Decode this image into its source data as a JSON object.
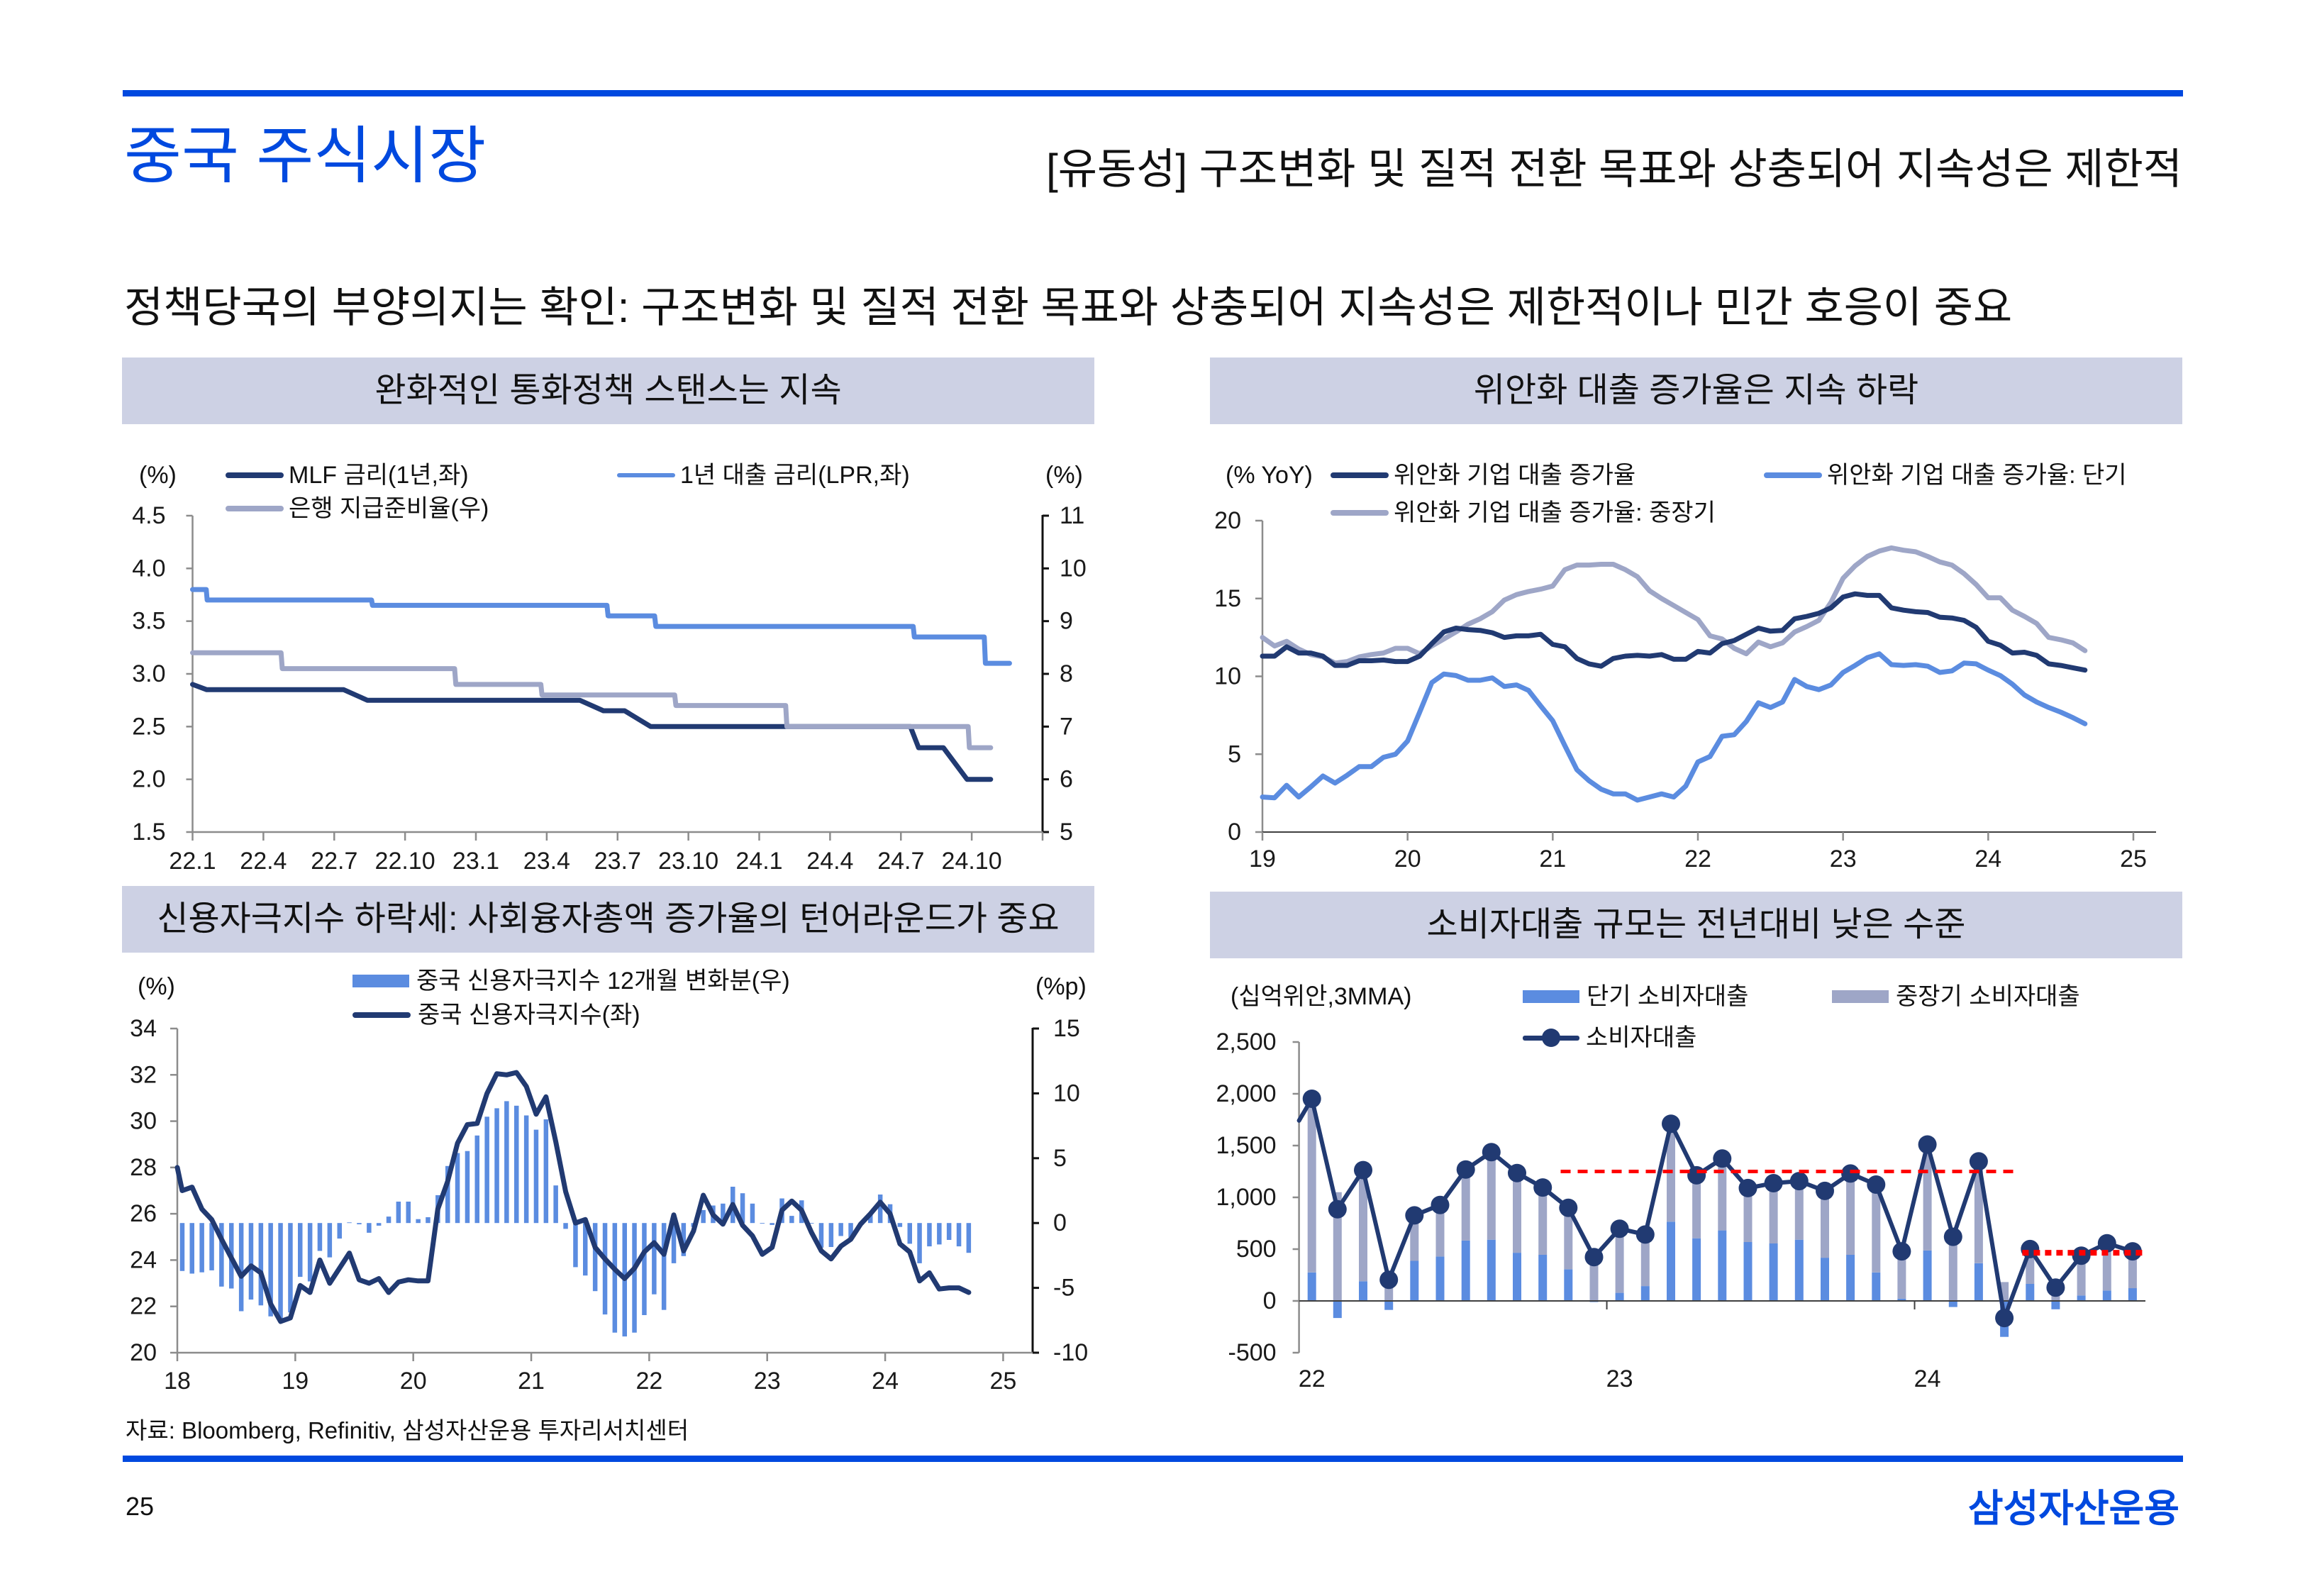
{
  "header": {
    "section_title": "중국 주식시장",
    "page_title": "[유동성] 구조변화 및 질적 전환 목표와 상충되어 지속성은 제한적"
  },
  "subtitle": "정책당국의 부양의지는 확인: 구조변화 및 질적 전환 목표와 상충되어 지속성은 제한적이나 민간 호응이 중요",
  "colors": {
    "brand_blue": "#0049DF",
    "panel_header_bg": "#CDD1E4",
    "navy": "#213A72",
    "light_blue": "#5B8CE0",
    "lavender_gray": "#9EA6C7",
    "reference_red": "#FF0000"
  },
  "chart_data": [
    {
      "type": "line",
      "title": "완화적인 통화정책 스탠스는 지속",
      "ylabel_left": "(%)",
      "ylabel_right": "(%)",
      "x_unit": "months since 2022.1",
      "xlim": [
        0,
        36
      ],
      "xtick_interval_months": 3,
      "xticks": [
        {
          "at": 0,
          "label": "22.1"
        },
        {
          "at": 3,
          "label": "22.4"
        },
        {
          "at": 6,
          "label": "22.7"
        },
        {
          "at": 9,
          "label": "22.10"
        },
        {
          "at": 12,
          "label": "23.1"
        },
        {
          "at": 15,
          "label": "23.4"
        },
        {
          "at": 18,
          "label": "23.7"
        },
        {
          "at": 21,
          "label": "23.10"
        },
        {
          "at": 24,
          "label": "24.1"
        },
        {
          "at": 27,
          "label": "24.4"
        },
        {
          "at": 30,
          "label": "24.7"
        },
        {
          "at": 33,
          "label": "24.10"
        }
      ],
      "ylim_left": [
        1.5,
        4.5
      ],
      "ylim_right": [
        5,
        11
      ],
      "yticks_left": [
        "1.5",
        "2.0",
        "2.5",
        "3.0",
        "3.5",
        "4.0",
        "4.5"
      ],
      "yticks_right": [
        "5",
        "6",
        "7",
        "8",
        "9",
        "10",
        "11"
      ],
      "grid": false,
      "legend": "top",
      "series": [
        {
          "key": "mlf",
          "name": "MLF 금리(1년,좌)",
          "axis": "left",
          "color": "#213A72",
          "points": [
            [
              0,
              2.9
            ],
            [
              0.6,
              2.85
            ],
            [
              6.4,
              2.85
            ],
            [
              7.4,
              2.75
            ],
            [
              16.4,
              2.75
            ],
            [
              17.4,
              2.65
            ],
            [
              18.3,
              2.65
            ],
            [
              19.4,
              2.5
            ],
            [
              30.4,
              2.5
            ],
            [
              30.75,
              2.3
            ],
            [
              31.8,
              2.3
            ],
            [
              32.8,
              2.0
            ],
            [
              33.8,
              2.0
            ]
          ]
        },
        {
          "key": "lpr",
          "name": "1년 대출 금리(LPR,좌)",
          "axis": "left",
          "color": "#5B8CE0",
          "points": [
            [
              0,
              3.8
            ],
            [
              0.58,
              3.8
            ],
            [
              0.62,
              3.7
            ],
            [
              7.58,
              3.7
            ],
            [
              7.62,
              3.65
            ],
            [
              17.55,
              3.65
            ],
            [
              17.6,
              3.55
            ],
            [
              19.57,
              3.55
            ],
            [
              19.62,
              3.45
            ],
            [
              30.52,
              3.45
            ],
            [
              30.57,
              3.35
            ],
            [
              33.53,
              3.35
            ],
            [
              33.58,
              3.1
            ],
            [
              34.6,
              3.1
            ]
          ]
        },
        {
          "key": "rrr",
          "name": "은행 지급준비율(우)",
          "axis": "right",
          "color": "#9EA6C7",
          "points": [
            [
              0,
              8.4
            ],
            [
              3.75,
              8.4
            ],
            [
              3.8,
              8.1
            ],
            [
              11.1,
              8.1
            ],
            [
              11.15,
              7.8
            ],
            [
              14.75,
              7.8
            ],
            [
              14.8,
              7.6
            ],
            [
              20.42,
              7.6
            ],
            [
              20.47,
              7.4
            ],
            [
              25.12,
              7.4
            ],
            [
              25.17,
              7.0
            ],
            [
              32.85,
              7.0
            ],
            [
              32.9,
              6.6
            ],
            [
              33.8,
              6.6
            ]
          ]
        }
      ]
    },
    {
      "type": "line",
      "title": "위안화 대출 증가율은 지속 하락",
      "ylabel": "(% YoY)",
      "x_start": "2019-01",
      "frequency": "monthly",
      "xlim": [
        19,
        25
      ],
      "ylim": [
        0,
        20
      ],
      "xticks": [
        "19",
        "20",
        "21",
        "22",
        "23",
        "24",
        "25"
      ],
      "yticks": [
        "0",
        "5",
        "10",
        "15",
        "20"
      ],
      "grid": false,
      "legend": "top",
      "series": [
        {
          "key": "mid-long",
          "name": "위안화 기업 대출 증가율: 중장기",
          "color": "#9EA6C7",
          "values": [
            12.5,
            11.95,
            12.25,
            11.75,
            11.4,
            11.25,
            10.85,
            10.95,
            11.25,
            11.4,
            11.5,
            11.8,
            11.8,
            11.45,
            11.95,
            12.4,
            12.85,
            13.35,
            13.7,
            14.15,
            14.9,
            15.25,
            15.45,
            15.6,
            15.8,
            16.85,
            17.15,
            17.15,
            17.2,
            17.2,
            16.85,
            16.4,
            15.5,
            15.0,
            14.55,
            14.1,
            13.65,
            12.6,
            12.4,
            11.8,
            11.45,
            12.2,
            11.9,
            12.15,
            12.85,
            13.2,
            13.6,
            14.75,
            16.3,
            17.1,
            17.7,
            18.05,
            18.25,
            18.1,
            18.0,
            17.7,
            17.35,
            17.15,
            16.6,
            15.9,
            15.05,
            15.05,
            14.25,
            13.85,
            13.4,
            12.5,
            12.35,
            12.15,
            11.65
          ]
        },
        {
          "key": "short",
          "name": "위안화 기업 대출 증가율: 단기",
          "color": "#5B8CE0",
          "values": [
            2.25,
            2.2,
            3.0,
            2.25,
            2.9,
            3.6,
            3.15,
            3.65,
            4.2,
            4.2,
            4.8,
            5.0,
            5.85,
            7.7,
            9.6,
            10.15,
            10.05,
            9.75,
            9.75,
            9.9,
            9.35,
            9.45,
            9.1,
            8.1,
            7.15,
            5.55,
            4.0,
            3.3,
            2.75,
            2.45,
            2.45,
            2.05,
            2.25,
            2.45,
            2.25,
            2.95,
            4.5,
            4.85,
            6.15,
            6.25,
            7.1,
            8.3,
            8.0,
            8.35,
            9.8,
            9.35,
            9.15,
            9.45,
            10.25,
            10.7,
            11.2,
            11.45,
            10.75,
            10.7,
            10.75,
            10.65,
            10.25,
            10.35,
            10.85,
            10.8,
            10.4,
            10.05,
            9.5,
            8.8,
            8.35,
            8.0,
            7.7,
            7.35,
            6.95
          ]
        },
        {
          "key": "total",
          "name": "위안화 기업 대출 증가율",
          "color": "#213A72",
          "values": [
            11.3,
            11.3,
            11.9,
            11.5,
            11.5,
            11.3,
            10.7,
            10.7,
            11.0,
            11.0,
            11.05,
            10.95,
            10.95,
            11.3,
            12.1,
            12.85,
            13.1,
            13.0,
            12.95,
            12.8,
            12.5,
            12.6,
            12.6,
            12.7,
            12.05,
            11.9,
            11.15,
            10.8,
            10.65,
            11.15,
            11.3,
            11.35,
            11.3,
            11.4,
            11.1,
            11.1,
            11.6,
            11.5,
            12.1,
            12.3,
            12.7,
            13.1,
            12.9,
            12.95,
            13.7,
            13.85,
            14.05,
            14.4,
            15.1,
            15.3,
            15.2,
            15.2,
            14.4,
            14.25,
            14.15,
            14.1,
            13.8,
            13.75,
            13.6,
            13.15,
            12.25,
            12.0,
            11.5,
            11.55,
            11.35,
            10.8,
            10.7,
            10.55,
            10.4
          ]
        }
      ]
    },
    {
      "type": "bar+line",
      "title": "신용자극지수 하락세: 사회융자총액 증가율의 턴어라운드가 중요",
      "ylabel_left": "(%)",
      "ylabel_right": "(%p)",
      "x_start": "2018-01",
      "frequency": "monthly",
      "xlim": [
        18,
        25.25
      ],
      "xticks": [
        "18",
        "19",
        "20",
        "21",
        "22",
        "23",
        "24",
        "25"
      ],
      "ylim_left": [
        20,
        34
      ],
      "ylim_right": [
        -10,
        15
      ],
      "yticks_left": [
        "20",
        "22",
        "24",
        "26",
        "28",
        "30",
        "32",
        "34"
      ],
      "yticks_right": [
        "-10",
        "-5",
        "0",
        "5",
        "10",
        "15"
      ],
      "grid": false,
      "legend": "top",
      "series": [
        {
          "key": "impulse-change",
          "name": "중국 신용자극지수 12개월 변화분(우)",
          "type": "bar",
          "axis": "right",
          "color": "#5B8CE0",
          "values": [
            -3.7,
            -3.9,
            -3.8,
            -3.65,
            -4.9,
            -5.05,
            -6.8,
            -5.9,
            -6.35,
            -7.2,
            -7.6,
            -6.9,
            -4.15,
            -4.5,
            -2.15,
            -2.65,
            -1.2,
            0.05,
            -0.1,
            -0.75,
            -0.2,
            0.5,
            1.65,
            1.65,
            0.3,
            0.45,
            2.15,
            4.4,
            5.4,
            5.55,
            6.75,
            8.2,
            8.85,
            9.4,
            9.05,
            8.3,
            7.2,
            8.0,
            2.9,
            -0.45,
            -3.4,
            -4.05,
            -5.25,
            -7.05,
            -8.45,
            -8.75,
            -8.45,
            -7.1,
            -5.5,
            -6.7,
            -3.1,
            -2.55,
            -0.3,
            1.0,
            1.35,
            1.5,
            2.8,
            2.3,
            1.5,
            -0.05,
            -0.15,
            1.9,
            0.55,
            1.75,
            -0.05,
            -1.9,
            -1.85,
            -1.0,
            -1.15,
            0.0,
            0.7,
            2.2,
            1.45,
            -0.3,
            -1.6,
            -3.1,
            -1.8,
            -1.65,
            -1.3,
            -1.8,
            -2.3
          ]
        },
        {
          "key": "impulse",
          "name": "중국 신용자극지수(좌)",
          "type": "line",
          "axis": "left",
          "color": "#213A72",
          "prior_value": 28.0,
          "values": [
            27.0,
            27.15,
            26.2,
            25.75,
            24.9,
            24.1,
            23.3,
            23.75,
            23.45,
            22.1,
            21.35,
            21.5,
            22.9,
            22.6,
            24.0,
            23.0,
            23.65,
            24.3,
            23.15,
            23.0,
            23.2,
            22.6,
            23.05,
            23.15,
            23.1,
            23.1,
            26.2,
            27.4,
            29.05,
            29.85,
            29.9,
            31.2,
            32.05,
            32.0,
            32.1,
            31.5,
            30.3,
            31.05,
            29.1,
            26.95,
            25.6,
            25.75,
            24.55,
            24.05,
            23.6,
            23.2,
            23.65,
            24.35,
            24.75,
            24.25,
            25.95,
            24.4,
            25.25,
            26.8,
            25.95,
            25.55,
            26.4,
            25.5,
            25.05,
            24.25,
            24.55,
            26.15,
            26.55,
            26.15,
            25.2,
            24.4,
            24.05,
            24.6,
            24.9,
            25.55,
            26.0,
            26.5,
            26.0,
            24.7,
            24.35,
            23.1,
            23.45,
            22.75,
            22.8,
            22.8,
            22.6
          ]
        }
      ]
    },
    {
      "type": "stacked-bar+line",
      "title": "소비자대출 규모는 전년대비 낮은 수준",
      "ylabel": "(십억위안,3MMA)",
      "frequency": "monthly",
      "categories": [
        "2022-01",
        "2022-02",
        "2022-03",
        "2022-04",
        "2022-05",
        "2022-06",
        "2022-07",
        "2022-08",
        "2022-09",
        "2022-10",
        "2022-11",
        "2022-12",
        "2023-01",
        "2023-02",
        "2023-03",
        "2023-04",
        "2023-05",
        "2023-06",
        "2023-07",
        "2023-08",
        "2023-09",
        "2023-10",
        "2023-11",
        "2023-12",
        "2024-01",
        "2024-02",
        "2024-03",
        "2024-04",
        "2024-05",
        "2024-06",
        "2024-07",
        "2024-08",
        "2024-09"
      ],
      "xticks": [
        {
          "index": 0,
          "label": "22"
        },
        {
          "index": 12,
          "label": "23"
        },
        {
          "index": 24,
          "label": "24"
        }
      ],
      "ylim": [
        -500,
        2500
      ],
      "yticks": [
        "-500",
        "0",
        "500",
        "1,000",
        "1,500",
        "2,000",
        "2,500"
      ],
      "grid": false,
      "legend": "top",
      "series": [
        {
          "key": "short",
          "name": "단기 소비자대출",
          "type": "bar",
          "color": "#5B8CE0",
          "values": [
            275,
            -165,
            190,
            -87,
            387,
            429,
            583,
            591,
            465,
            445,
            305,
            -11,
            78,
            143,
            765,
            605,
            681,
            569,
            555,
            591,
            417,
            445,
            275,
            22,
            487,
            -59,
            364,
            -347,
            165,
            -81,
            53,
            101,
            123
          ]
        },
        {
          "key": "mid-long",
          "name": "중장기 소비자대출",
          "type": "bar",
          "color": "#9EA6C7",
          "values": [
            1677,
            1050,
            1073,
            291,
            439,
            498,
            686,
            846,
            770,
            650,
            594,
            434,
            619,
            498,
            946,
            608,
            694,
            521,
            582,
            566,
            645,
            785,
            848,
            457,
            1023,
            678,
            983,
            182,
            336,
            210,
            384,
            456,
            356
          ]
        },
        {
          "key": "total",
          "name": "소비자대출",
          "type": "line",
          "color": "#213A72",
          "prior_value": 1530,
          "values": [
            1952,
            885,
            1263,
            204,
            826,
            927,
            1269,
            1437,
            1235,
            1095,
            899,
            423,
            697,
            641,
            1711,
            1213,
            1375,
            1090,
            1137,
            1157,
            1062,
            1230,
            1123,
            479,
            1510,
            619,
            1347,
            -165,
            501,
            129,
            437,
            557,
            479
          ]
        }
      ],
      "reference_lines": [
        {
          "value": 1250,
          "from": "2022-11",
          "to": "2024-04",
          "color": "#FF0000",
          "style": "dashed"
        },
        {
          "value": 465,
          "from": "2024-05",
          "to": "2024-09",
          "color": "#FF0000",
          "style": "dotted"
        }
      ]
    }
  ],
  "footer": {
    "source": "자료: Bloomberg, Refinitiv, 삼성자산운용 투자리서치센터",
    "page_number": "25",
    "logo": "삼성자산운용"
  }
}
